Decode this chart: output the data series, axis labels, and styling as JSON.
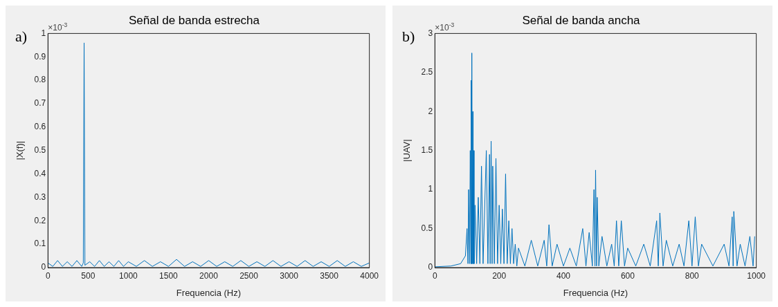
{
  "chart_data": [
    {
      "type": "line",
      "title": "Señal de banda estrecha",
      "xlabel": "Frequencia (Hz)",
      "ylabel": "|X(f)|",
      "annotations": [
        "a)",
        "×10$^{-3}$"
      ],
      "series": [
        {
          "color": "#0072bd",
          "x": [
            0,
            60,
            120,
            180,
            240,
            300,
            360,
            420,
            440,
            450,
            460,
            520,
            580,
            640,
            700,
            760,
            820,
            880,
            940,
            1000,
            1100,
            1200,
            1300,
            1400,
            1500,
            1600,
            1700,
            1800,
            1900,
            2000,
            2100,
            2200,
            2300,
            2400,
            2500,
            2600,
            2700,
            2800,
            2900,
            3000,
            3100,
            3200,
            3300,
            3400,
            3500,
            3600,
            3700,
            3800,
            3900,
            4000
          ],
          "values": [
            0.02,
            0.005,
            0.03,
            0.005,
            0.025,
            0.005,
            0.03,
            0.005,
            0.02,
            0.96,
            0.01,
            0.025,
            0.005,
            0.03,
            0.005,
            0.025,
            0.005,
            0.03,
            0.005,
            0.025,
            0.005,
            0.03,
            0.005,
            0.025,
            0.005,
            0.035,
            0.005,
            0.025,
            0.005,
            0.03,
            0.005,
            0.025,
            0.005,
            0.03,
            0.005,
            0.025,
            0.005,
            0.03,
            0.005,
            0.025,
            0.005,
            0.03,
            0.005,
            0.025,
            0.005,
            0.03,
            0.005,
            0.025,
            0.005,
            0.02
          ]
        }
      ],
      "xlim": [
        0,
        4000
      ],
      "xticks": [
        0,
        500,
        1000,
        1500,
        2000,
        2500,
        3000,
        3500,
        4000
      ],
      "ylim": [
        0,
        1
      ],
      "yticks": [
        0,
        0.1,
        0.2,
        0.3,
        0.4,
        0.5,
        0.6,
        0.7,
        0.8,
        0.9,
        1
      ],
      "grid": false,
      "legend": false
    },
    {
      "type": "line",
      "title": "Señal de banda ancha",
      "xlabel": "Frequencia (Hz)",
      "ylabel": "|UAV|",
      "annotations": [
        "b)",
        "×10$^{-3}$"
      ],
      "series": [
        {
          "color": "#0072bd",
          "x": [
            0,
            50,
            80,
            95,
            100,
            103,
            105,
            108,
            110,
            112,
            113,
            114,
            115,
            116,
            118,
            119,
            120,
            122,
            125,
            130,
            135,
            140,
            145,
            150,
            160,
            165,
            170,
            172,
            175,
            178,
            180,
            185,
            190,
            195,
            200,
            205,
            210,
            215,
            220,
            225,
            230,
            235,
            240,
            245,
            250,
            255,
            260,
            280,
            300,
            320,
            340,
            348,
            355,
            365,
            380,
            400,
            420,
            440,
            460,
            470,
            480,
            490,
            495,
            498,
            500,
            503,
            505,
            510,
            520,
            535,
            550,
            558,
            565,
            572,
            580,
            590,
            600,
            625,
            650,
            670,
            690,
            695,
            700,
            710,
            720,
            740,
            760,
            775,
            790,
            800,
            810,
            820,
            830,
            865,
            900,
            915,
            925,
            928,
            930,
            940,
            950,
            965,
            980,
            990,
            995
          ],
          "values": [
            0.01,
            0.02,
            0.05,
            0.15,
            0.5,
            0.05,
            1.0,
            0.05,
            1.5,
            0.05,
            2.4,
            0.05,
            2.75,
            0.05,
            2.0,
            0.05,
            1.5,
            0.05,
            0.8,
            0.05,
            0.9,
            0.05,
            1.3,
            0.05,
            1.5,
            0.05,
            1.45,
            0.05,
            1.62,
            0.05,
            1.3,
            0.05,
            1.4,
            0.05,
            0.8,
            0.05,
            0.75,
            0.05,
            1.2,
            0.05,
            0.6,
            0.05,
            0.5,
            0.05,
            0.3,
            0.02,
            0.25,
            0.02,
            0.35,
            0.02,
            0.35,
            0.02,
            0.55,
            0.02,
            0.3,
            0.02,
            0.25,
            0.02,
            0.5,
            0.02,
            0.45,
            0.02,
            1.0,
            0.02,
            1.25,
            0.02,
            0.9,
            0.02,
            0.4,
            0.02,
            0.3,
            0.02,
            0.6,
            0.02,
            0.6,
            0.02,
            0.25,
            0.02,
            0.3,
            0.02,
            0.6,
            0.02,
            0.7,
            0.02,
            0.35,
            0.02,
            0.3,
            0.02,
            0.6,
            0.02,
            0.65,
            0.02,
            0.3,
            0.02,
            0.3,
            0.02,
            0.65,
            0.02,
            0.72,
            0.02,
            0.3,
            0.02,
            0.4,
            0.02,
            0.4
          ]
        }
      ],
      "xlim": [
        0,
        1000
      ],
      "xticks": [
        0,
        200,
        400,
        600,
        800,
        1000
      ],
      "ylim": [
        0,
        3
      ],
      "yticks": [
        0,
        0.5,
        1,
        1.5,
        2,
        2.5,
        3
      ],
      "grid": false,
      "legend": false
    }
  ]
}
